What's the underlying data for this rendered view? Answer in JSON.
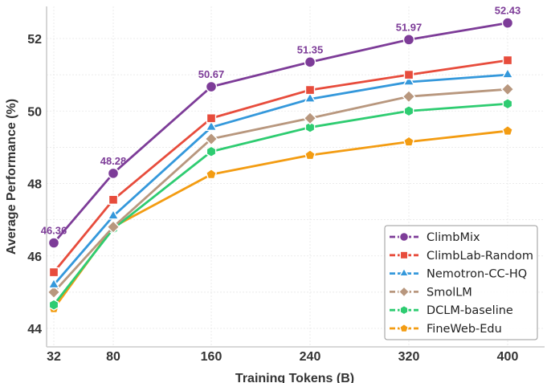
{
  "chart_data": {
    "type": "line",
    "title": "",
    "xlabel": "Training Tokens (B)",
    "ylabel": "Average Performance (%)",
    "x": [
      32,
      80,
      160,
      240,
      320,
      400
    ],
    "x_tick_labels": [
      "32",
      "80",
      "160",
      "240",
      "320",
      "400"
    ],
    "y_tick_labels": [
      "44",
      "46",
      "48",
      "50",
      "52"
    ],
    "ylim": [
      43.6,
      52.9
    ],
    "grid": true,
    "legend_position": "bottom-right",
    "series": [
      {
        "name": "ClimbMix",
        "color": "#7d3c98",
        "marker": "circle",
        "values": [
          46.36,
          48.28,
          50.67,
          51.35,
          51.97,
          52.43
        ],
        "labels": [
          "46.36",
          "48.28",
          "50.67",
          "51.35",
          "51.97",
          "52.43"
        ]
      },
      {
        "name": "ClimbLab-Random",
        "color": "#e74c3c",
        "marker": "square",
        "values": [
          45.55,
          47.55,
          49.8,
          50.58,
          51.0,
          51.4
        ]
      },
      {
        "name": "Nemotron-CC-HQ",
        "color": "#3498db",
        "marker": "triangle",
        "values": [
          45.2,
          47.1,
          49.55,
          50.33,
          50.8,
          51.0
        ]
      },
      {
        "name": "SmolLM",
        "color": "#b8977e",
        "marker": "diamond",
        "values": [
          45.0,
          46.8,
          49.23,
          49.8,
          50.4,
          50.6
        ]
      },
      {
        "name": "DCLM-baseline",
        "color": "#2ecc71",
        "marker": "hexagon",
        "values": [
          44.65,
          46.75,
          48.88,
          49.55,
          50.0,
          50.2
        ]
      },
      {
        "name": "FineWeb-Edu",
        "color": "#f39c12",
        "marker": "pentagon",
        "values": [
          44.55,
          46.8,
          48.25,
          48.78,
          49.15,
          49.45
        ]
      }
    ]
  }
}
